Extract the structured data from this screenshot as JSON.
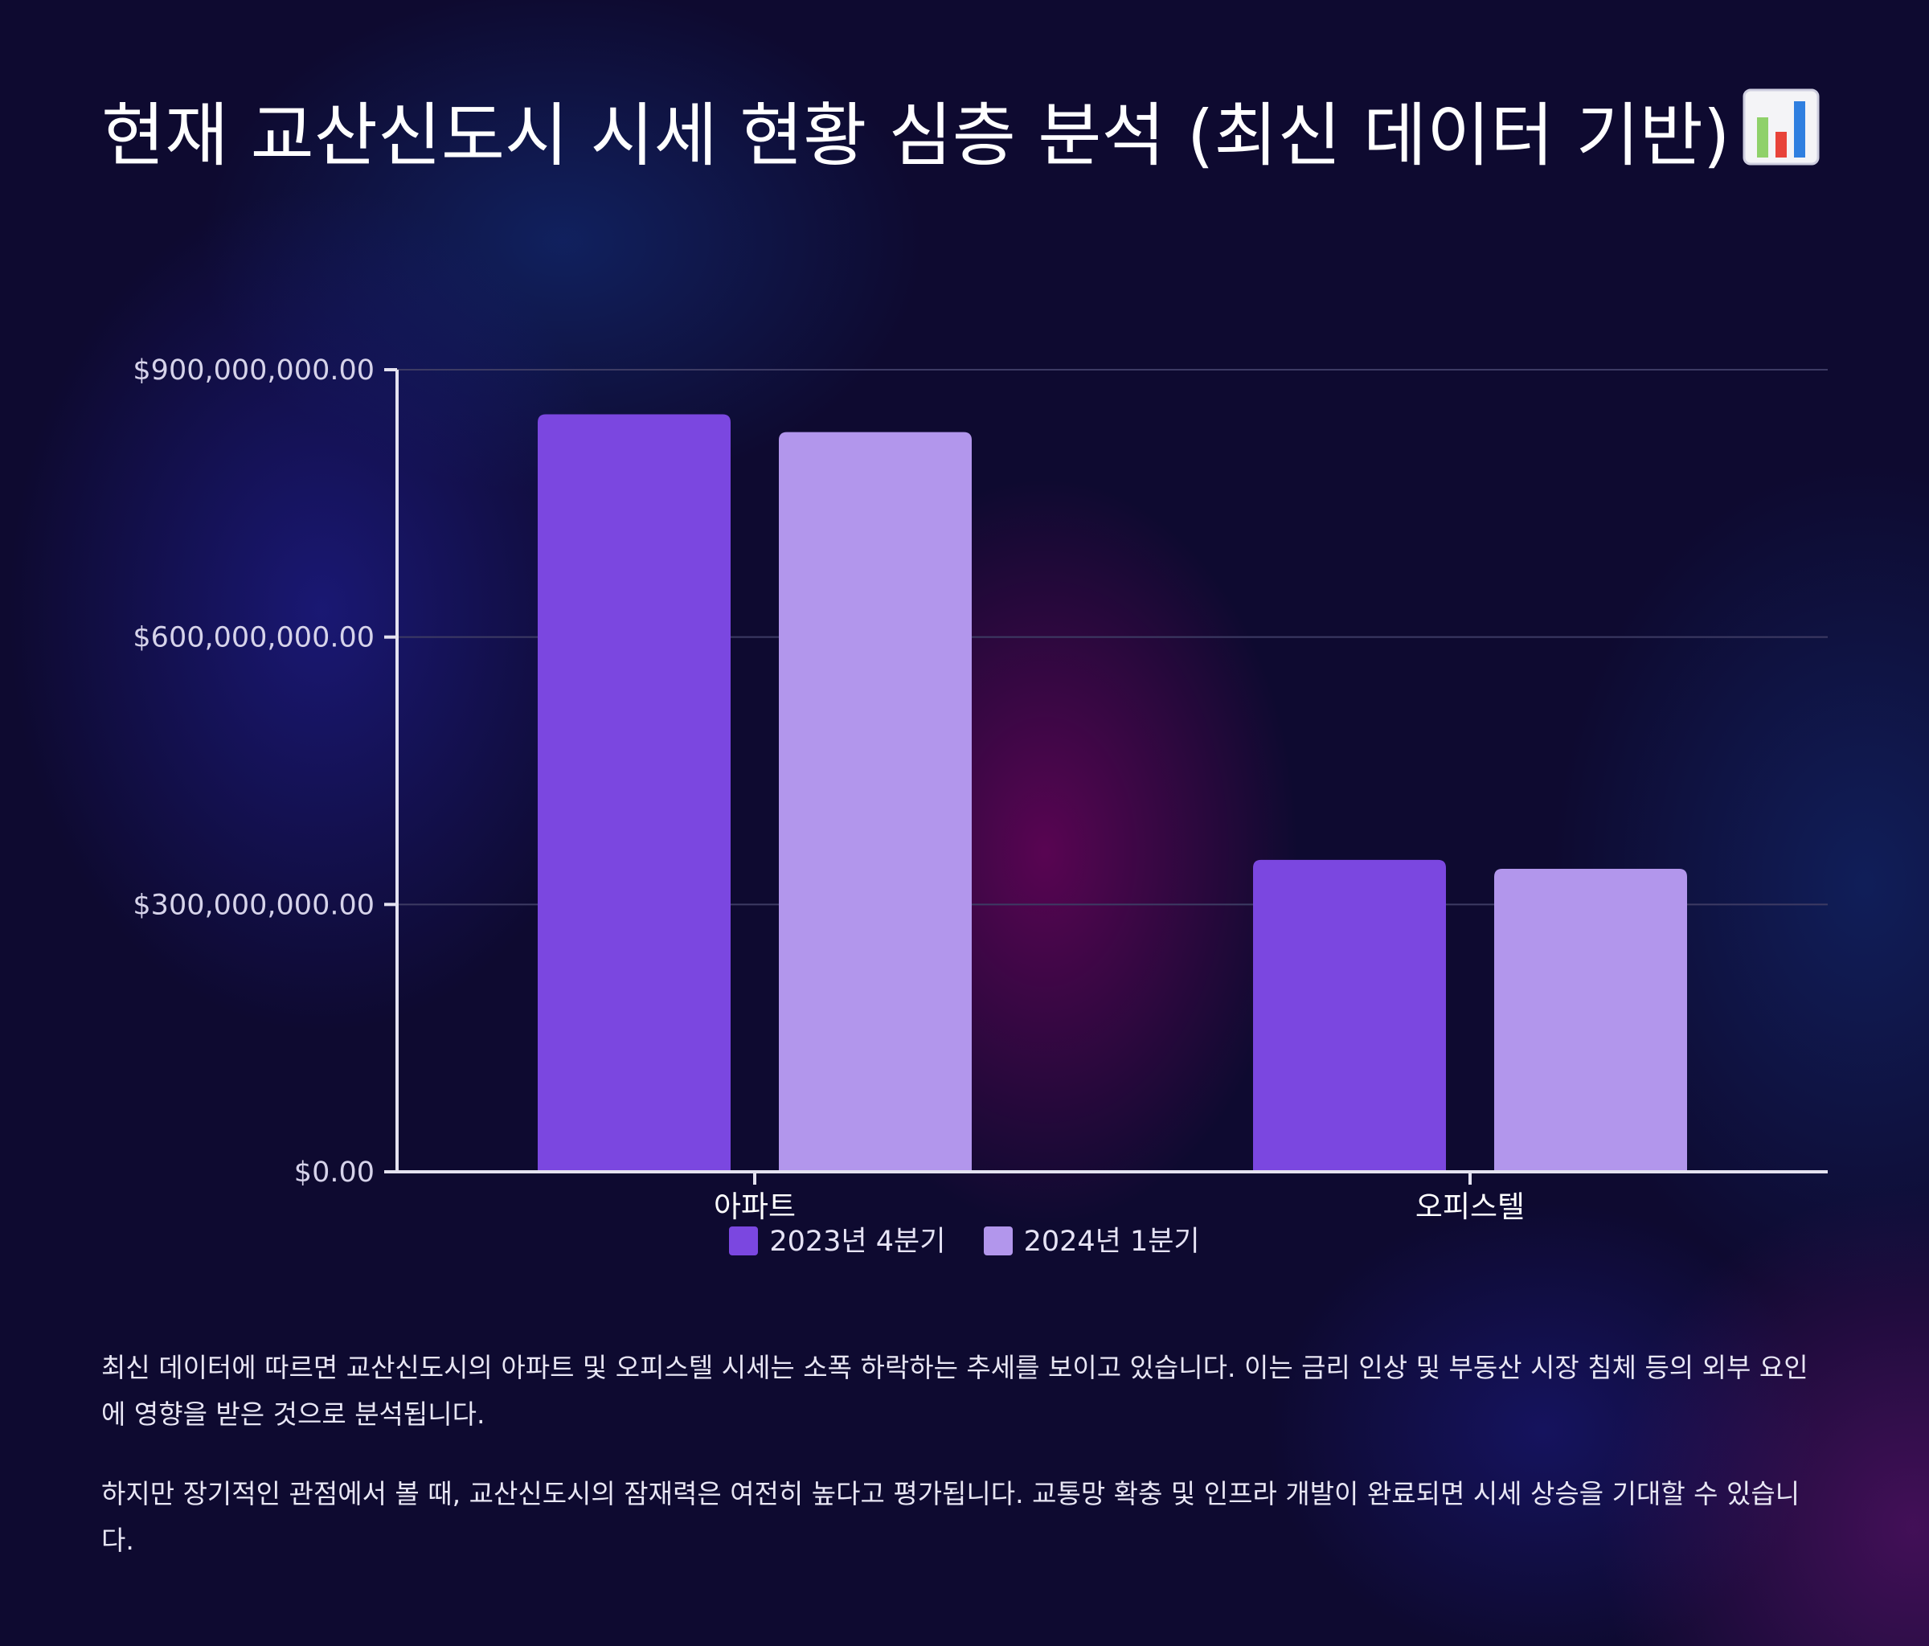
{
  "page": {
    "title": "현재 교산신도시 시세 현황 심층 분석 (최신 데이터 기반)",
    "title_icon": "bar-chart-icon",
    "paragraphs": [
      "최신 데이터에 따르면 교산신도시의 아파트 및 오피스텔 시세는 소폭 하락하는 추세를 보이고 있습니다. 이는 금리 인상 및 부동산 시장 침체 등의 외부 요인에 영향을 받은 것으로 분석됩니다.",
      "하지만 장기적인 관점에서 볼 때, 교산신도시의 잠재력은 여전히 높다고 평가됩니다. 교통망 확충 및 인프라 개발이 완료되면 시세 상승을 기대할 수 있습니다."
    ]
  },
  "colors": {
    "series_2023q4": "#7b47e0",
    "series_2024q1": "#b296ec",
    "grid": "#3d3b63",
    "axis": "#e4e2f0"
  },
  "chart_data": {
    "type": "bar",
    "title": "",
    "xlabel": "",
    "ylabel": "",
    "categories": [
      "아파트",
      "오피스텔"
    ],
    "series": [
      {
        "name": "2023년 4분기",
        "values": [
          850000000,
          350000000
        ]
      },
      {
        "name": "2024년 1분기",
        "values": [
          830000000,
          340000000
        ]
      }
    ],
    "ylim": [
      0,
      900000000
    ],
    "yticks": [
      0,
      300000000,
      600000000,
      900000000
    ],
    "ytick_labels": [
      "$0.00",
      "$300,000,000.00",
      "$600,000,000.00",
      "$900,000,000.00"
    ],
    "grid": true,
    "legend_position": "bottom"
  }
}
